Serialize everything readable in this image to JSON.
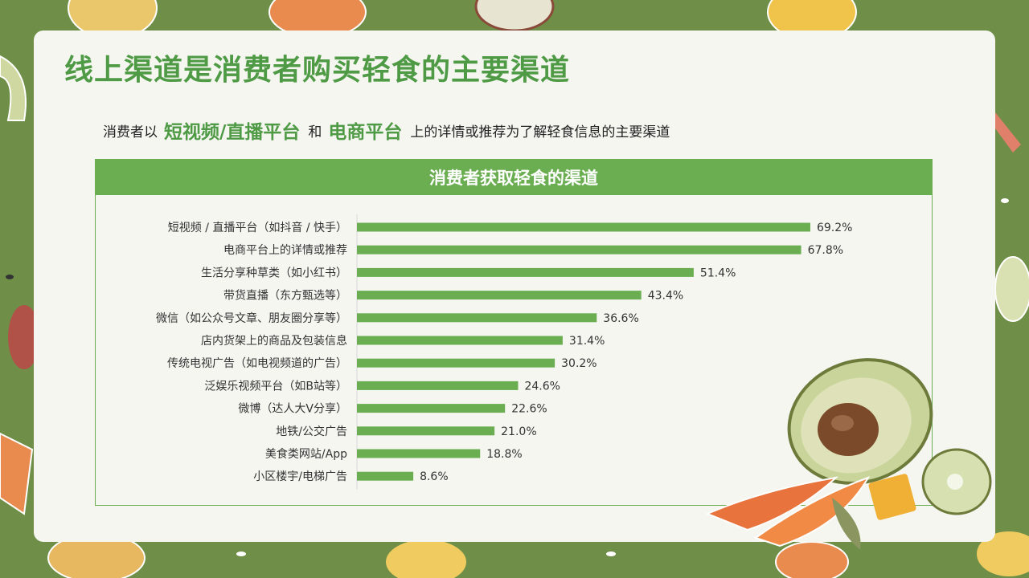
{
  "page": {
    "title": "线上渠道是消费者购买轻食的主要渠道",
    "subtitle_prefix": "消费者以",
    "highlight_1": "短视频/直播平台",
    "connector": "和",
    "highlight_2": "电商平台",
    "subtitle_suffix": "上的详情或推荐为了解轻食信息的主要渠道"
  },
  "colors": {
    "background": "#6f8f48",
    "accent": "#4f9a45",
    "bar": "#6bae52",
    "header": "#6bae52"
  },
  "chart_data": {
    "type": "bar",
    "orientation": "horizontal",
    "title": "消费者获取轻食的渠道",
    "categories": [
      "短视频 / 直播平台（如抖音 / 快手）",
      "电商平台上的详情或推荐",
      "生活分享种草类（如小红书）",
      "带货直播（东方甄选等）",
      "微信（如公众号文章、朋友圈分享等）",
      "店内货架上的商品及包装信息",
      "传统电视广告（如电视频道的广告）",
      "泛娱乐视频平台（如B站等）",
      "微博（达人大V分享）",
      "地铁/公交广告",
      "美食类网站/App",
      "小区楼宇/电梯广告"
    ],
    "values": [
      69.2,
      67.8,
      51.4,
      43.4,
      36.6,
      31.4,
      30.2,
      24.6,
      22.6,
      21.0,
      18.8,
      8.6
    ],
    "value_labels": [
      "69.2%",
      "67.8%",
      "51.4%",
      "43.4%",
      "36.6%",
      "31.4%",
      "30.2%",
      "24.6%",
      "22.6%",
      "21.0%",
      "18.8%",
      "8.6%"
    ],
    "unit": "%",
    "xlim": [
      0,
      100
    ],
    "grid": false,
    "legend": "none"
  }
}
